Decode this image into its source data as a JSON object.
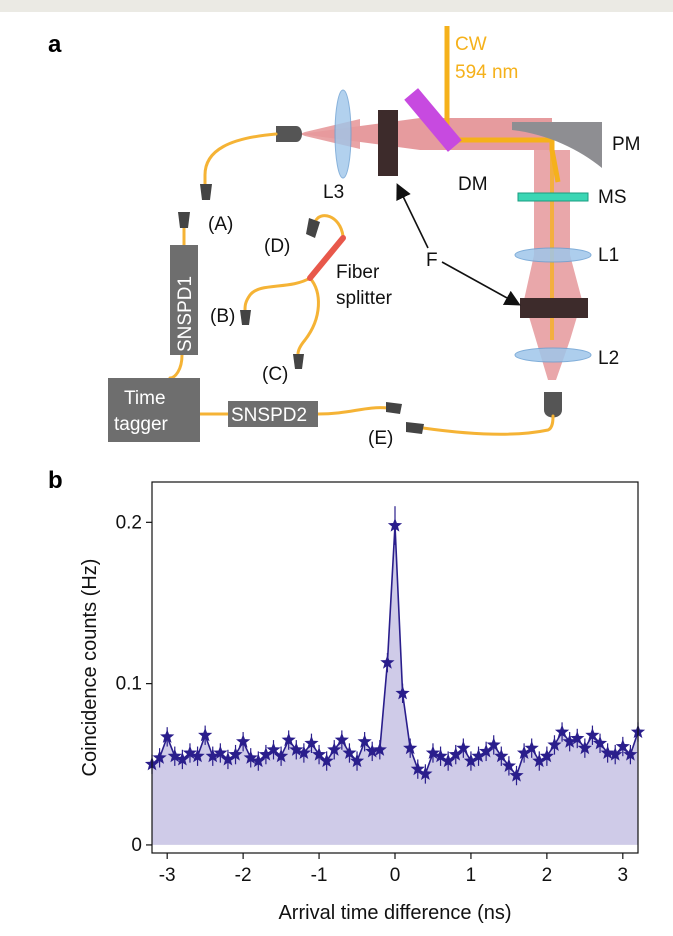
{
  "panel_a": {
    "label": "a",
    "labels": {
      "cw": "CW",
      "wavelength": "594 nm",
      "pm": "PM",
      "dm": "DM",
      "ms": "MS",
      "l1": "L1",
      "l2": "L2",
      "l3": "L3",
      "f": "F",
      "a": "(A)",
      "b": "(B)",
      "c": "(C)",
      "d": "(D)",
      "e": "(E)",
      "fiber_splitter_line1": "Fiber",
      "fiber_splitter_line2": "splitter",
      "snspd1": "SNSPD1",
      "snspd2": "SNSPD2",
      "time_tagger_line1": "Time",
      "time_tagger_line2": "tagger"
    },
    "colors": {
      "pump": "#f5b11b",
      "emission": "#e4868a",
      "fiber": "#f5b335",
      "filter": "#3d2b2b",
      "dichroic": "#c74ae0",
      "sample": "#3ad6b4",
      "lens": "#9fc6ea",
      "detector_box": "#6e6e6e",
      "splitter": "#e8584b"
    }
  },
  "panel_b": {
    "label": "b"
  },
  "chart_data": {
    "type": "line",
    "xlabel": "Arrival time difference (ns)",
    "ylabel": "Coincidence counts (Hz)",
    "xlim": [
      -3.2,
      3.2
    ],
    "ylim": [
      -0.005,
      0.225
    ],
    "xticks": [
      -3,
      -2,
      -1,
      0,
      1,
      2,
      3
    ],
    "xtick_labels": [
      "-3",
      "-2",
      "-1",
      "0",
      "1",
      "2",
      "3"
    ],
    "yticks": [
      0,
      0.1,
      0.2
    ],
    "ytick_labels": [
      "0",
      "0.1",
      "0.2"
    ],
    "grid": false,
    "series": [
      {
        "marker": "star",
        "color": "#2a1e8c",
        "fill": "#cfcbe8",
        "x": [
          -3.2,
          -3.1,
          -3.0,
          -2.9,
          -2.8,
          -2.7,
          -2.6,
          -2.5,
          -2.4,
          -2.3,
          -2.2,
          -2.1,
          -2.0,
          -1.9,
          -1.8,
          -1.7,
          -1.6,
          -1.5,
          -1.4,
          -1.3,
          -1.2,
          -1.1,
          -1.0,
          -0.9,
          -0.8,
          -0.7,
          -0.6,
          -0.5,
          -0.4,
          -0.3,
          -0.2,
          -0.1,
          0.0,
          0.1,
          0.2,
          0.3,
          0.4,
          0.5,
          0.6,
          0.7,
          0.8,
          0.9,
          1.0,
          1.1,
          1.2,
          1.3,
          1.4,
          1.5,
          1.6,
          1.7,
          1.8,
          1.9,
          2.0,
          2.1,
          2.2,
          2.3,
          2.4,
          2.5,
          2.6,
          2.7,
          2.8,
          2.9,
          3.0,
          3.1,
          3.2
        ],
        "y": [
          0.05,
          0.054,
          0.067,
          0.055,
          0.053,
          0.057,
          0.055,
          0.068,
          0.055,
          0.057,
          0.053,
          0.056,
          0.064,
          0.054,
          0.052,
          0.056,
          0.059,
          0.055,
          0.065,
          0.059,
          0.057,
          0.063,
          0.056,
          0.052,
          0.059,
          0.065,
          0.057,
          0.052,
          0.064,
          0.058,
          0.059,
          0.113,
          0.198,
          0.094,
          0.06,
          0.047,
          0.044,
          0.057,
          0.055,
          0.052,
          0.056,
          0.06,
          0.052,
          0.055,
          0.058,
          0.062,
          0.055,
          0.049,
          0.043,
          0.057,
          0.06,
          0.052,
          0.055,
          0.062,
          0.07,
          0.064,
          0.066,
          0.06,
          0.068,
          0.063,
          0.057,
          0.056,
          0.061,
          0.056,
          0.07
        ],
        "err": 0.006
      }
    ]
  }
}
